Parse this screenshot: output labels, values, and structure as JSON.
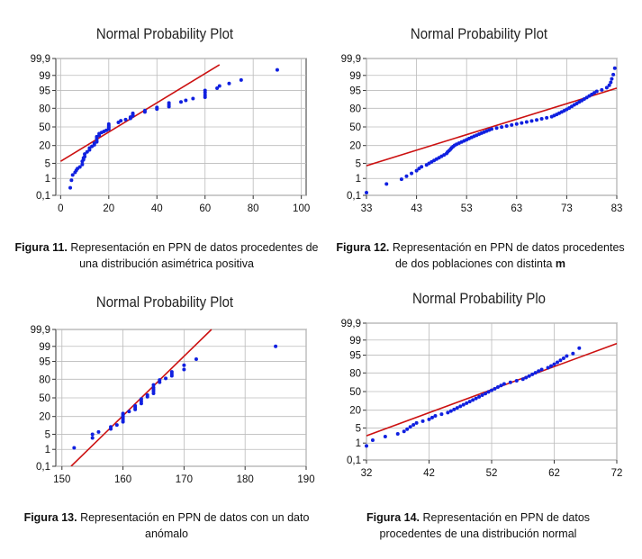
{
  "chart_data": [
    {
      "type": "scatter",
      "title": "Normal Probability Plot",
      "caption_label": "Figura 11.",
      "caption_text": " Representación en PPN de datos procedentes de una distribución asimétrica positiva",
      "x_ticks": [
        0,
        20,
        40,
        60,
        80,
        100
      ],
      "xlim": [
        -2,
        102
      ],
      "y_ticks": [
        "0,1",
        "1",
        "5",
        "20",
        "50",
        "80",
        "95",
        "99",
        "99,9"
      ],
      "y_scale": "normal-probability",
      "grid": true,
      "line": {
        "x": [
          0,
          66
        ],
        "y": [
          6,
          99.75
        ],
        "color": "#cc1111"
      },
      "series": [
        {
          "color": "#1020e0",
          "points": [
            [
              4,
              0.3
            ],
            [
              4.5,
              0.8
            ],
            [
              5,
              1.5
            ],
            [
              6,
              2
            ],
            [
              6.5,
              2.5
            ],
            [
              7,
              3
            ],
            [
              8,
              3.5
            ],
            [
              9,
              4.5
            ],
            [
              9,
              6
            ],
            [
              9.5,
              7
            ],
            [
              9.5,
              8
            ],
            [
              10,
              9
            ],
            [
              10,
              11
            ],
            [
              11,
              13
            ],
            [
              12,
              15
            ],
            [
              12,
              17
            ],
            [
              13,
              19
            ],
            [
              14,
              21
            ],
            [
              14,
              23
            ],
            [
              15,
              25
            ],
            [
              15,
              27
            ],
            [
              15,
              30
            ],
            [
              15,
              33
            ],
            [
              16,
              35
            ],
            [
              16,
              38
            ],
            [
              17,
              40
            ],
            [
              18,
              42
            ],
            [
              19,
              44
            ],
            [
              20,
              46
            ],
            [
              20,
              49
            ],
            [
              20,
              52
            ],
            [
              20,
              55
            ],
            [
              24,
              58
            ],
            [
              25,
              61
            ],
            [
              27,
              63
            ],
            [
              29,
              65
            ],
            [
              29,
              67
            ],
            [
              30,
              69
            ],
            [
              30,
              71
            ],
            [
              30,
              73
            ],
            [
              35,
              75
            ],
            [
              35,
              77
            ],
            [
              40,
              79
            ],
            [
              40,
              81
            ],
            [
              45,
              82
            ],
            [
              45,
              84
            ],
            [
              45,
              86
            ],
            [
              50,
              87
            ],
            [
              52,
              88.5
            ],
            [
              55,
              90
            ],
            [
              60,
              91
            ],
            [
              60,
              92.5
            ],
            [
              60,
              94
            ],
            [
              60,
              95
            ],
            [
              65,
              96
            ],
            [
              66,
              96.8
            ],
            [
              70,
              97.5
            ],
            [
              75,
              98.3
            ],
            [
              90,
              99.5
            ]
          ]
        }
      ]
    },
    {
      "type": "scatter",
      "title": "Normal Probability Plot",
      "caption_label": "Figura 12.",
      "caption_text": " Representación en PPN de datos procedentes de dos poblaciones con distinta ",
      "caption_bold_end": "m",
      "x_ticks": [
        33,
        43,
        53,
        63,
        73,
        83
      ],
      "xlim": [
        33,
        83
      ],
      "y_ticks": [
        "0,1",
        "1",
        "5",
        "20",
        "50",
        "80",
        "95",
        "99",
        "99,9"
      ],
      "y_scale": "normal-probability",
      "grid": true,
      "line": {
        "x": [
          33,
          83
        ],
        "y": [
          4,
          96
        ],
        "color": "#cc1111"
      },
      "series": [
        {
          "color": "#1020e0",
          "points": [
            [
              33,
              0.15
            ],
            [
              37,
              0.5
            ],
            [
              40,
              0.9
            ],
            [
              41,
              1.3
            ],
            [
              42,
              1.8
            ],
            [
              43,
              2.4
            ],
            [
              43.5,
              3
            ],
            [
              44,
              3.6
            ],
            [
              45,
              4.3
            ],
            [
              45.5,
              5
            ],
            [
              46,
              5.7
            ],
            [
              46.5,
              6.5
            ],
            [
              47,
              7.3
            ],
            [
              47.5,
              8.2
            ],
            [
              48,
              9.2
            ],
            [
              48.5,
              10.3
            ],
            [
              49,
              11.5
            ],
            [
              49.2,
              12.8
            ],
            [
              49.5,
              14.2
            ],
            [
              49.8,
              15.7
            ],
            [
              50,
              17.2
            ],
            [
              50.3,
              18.7
            ],
            [
              50.6,
              20.2
            ],
            [
              51,
              21.7
            ],
            [
              51.5,
              23.2
            ],
            [
              52,
              24.8
            ],
            [
              52.5,
              26.5
            ],
            [
              53,
              28.2
            ],
            [
              53.5,
              30
            ],
            [
              54,
              31.8
            ],
            [
              54.5,
              33.6
            ],
            [
              55,
              35.4
            ],
            [
              55.5,
              37.2
            ],
            [
              56,
              39
            ],
            [
              56.5,
              40.8
            ],
            [
              57,
              42.6
            ],
            [
              57.5,
              44.4
            ],
            [
              58,
              46.2
            ],
            [
              59,
              48
            ],
            [
              60,
              49.8
            ],
            [
              61,
              51.6
            ],
            [
              62,
              53.4
            ],
            [
              63,
              55.2
            ],
            [
              64,
              57
            ],
            [
              65,
              58.8
            ],
            [
              66,
              60.6
            ],
            [
              67,
              62.4
            ],
            [
              68,
              64.2
            ],
            [
              69,
              66
            ],
            [
              70,
              67.8
            ],
            [
              70.5,
              69.6
            ],
            [
              71,
              71.4
            ],
            [
              71.5,
              73.2
            ],
            [
              72,
              75
            ],
            [
              72.5,
              76.8
            ],
            [
              73,
              78.6
            ],
            [
              73.5,
              80.4
            ],
            [
              74,
              82.2
            ],
            [
              74.5,
              84
            ],
            [
              75,
              85.5
            ],
            [
              75.5,
              87
            ],
            [
              76,
              88.3
            ],
            [
              76.5,
              89.6
            ],
            [
              77,
              90.8
            ],
            [
              77.5,
              91.9
            ],
            [
              78,
              92.9
            ],
            [
              78.5,
              93.8
            ],
            [
              79,
              94.6
            ],
            [
              80,
              95.3
            ],
            [
              81,
              96.2
            ],
            [
              81.5,
              97
            ],
            [
              81.8,
              97.8
            ],
            [
              82,
              98.5
            ],
            [
              82.3,
              99.1
            ],
            [
              82.6,
              99.6
            ]
          ]
        }
      ]
    },
    {
      "type": "scatter",
      "title": "Normal Probability Plot",
      "caption_label": "Figura 13.",
      "caption_text": " Representación en PPN de datos con un dato anómalo",
      "x_ticks": [
        150,
        160,
        170,
        180,
        190
      ],
      "xlim": [
        149,
        190
      ],
      "y_ticks": [
        "0,1",
        "1",
        "5",
        "20",
        "50",
        "80",
        "95",
        "99",
        "99,9"
      ],
      "y_scale": "normal-probability",
      "grid": true,
      "line": {
        "x": [
          151.5,
          174.5
        ],
        "y": [
          0.1,
          99.9
        ],
        "color": "#cc1111"
      },
      "series": [
        {
          "color": "#1020e0",
          "points": [
            [
              152,
              1.2
            ],
            [
              155,
              3.5
            ],
            [
              155,
              5
            ],
            [
              156,
              6.2
            ],
            [
              158,
              8
            ],
            [
              158,
              9.5
            ],
            [
              159,
              11
            ],
            [
              160,
              14
            ],
            [
              160,
              16
            ],
            [
              160,
              18
            ],
            [
              160,
              20
            ],
            [
              160,
              22
            ],
            [
              160,
              24
            ],
            [
              161,
              27
            ],
            [
              162,
              30
            ],
            [
              162,
              33
            ],
            [
              162,
              36
            ],
            [
              163,
              40
            ],
            [
              163,
              44
            ],
            [
              163,
              48
            ],
            [
              164,
              52
            ],
            [
              164,
              55
            ],
            [
              165,
              58
            ],
            [
              165,
              62
            ],
            [
              165,
              65
            ],
            [
              165,
              68
            ],
            [
              165,
              72
            ],
            [
              166,
              76
            ],
            [
              166,
              79
            ],
            [
              167,
              81
            ],
            [
              168,
              84
            ],
            [
              168,
              86
            ],
            [
              168,
              88
            ],
            [
              170,
              90
            ],
            [
              170,
              93
            ],
            [
              172,
              96
            ],
            [
              185,
              99
            ]
          ]
        }
      ]
    },
    {
      "type": "scatter",
      "title": "Normal Probability Plo",
      "caption_label": "Figura 14.",
      "caption_text": " Representación en PPN de datos procedentes de una distribución normal",
      "x_ticks": [
        32,
        42,
        52,
        62,
        72
      ],
      "xlim": [
        32,
        72
      ],
      "y_ticks": [
        "0,1",
        "1",
        "5",
        "20",
        "50",
        "80",
        "95",
        "99",
        "99,9"
      ],
      "y_scale": "normal-probability",
      "grid": true,
      "line": {
        "x": [
          32,
          72
        ],
        "y": [
          2.3,
          98.5
        ],
        "color": "#cc1111"
      },
      "series": [
        {
          "color": "#1020e0",
          "points": [
            [
              32,
              0.7
            ],
            [
              33,
              1.4
            ],
            [
              35,
              2.1
            ],
            [
              37,
              2.8
            ],
            [
              38,
              3.6
            ],
            [
              38.5,
              4.5
            ],
            [
              39,
              5.5
            ],
            [
              39.5,
              6.6
            ],
            [
              40,
              7.8
            ],
            [
              41,
              9.1
            ],
            [
              42,
              10.5
            ],
            [
              42.5,
              12
            ],
            [
              43,
              13.6
            ],
            [
              44,
              15.3
            ],
            [
              45,
              17.1
            ],
            [
              45.5,
              19
            ],
            [
              46,
              21
            ],
            [
              46.5,
              23.1
            ],
            [
              47,
              25.3
            ],
            [
              47.5,
              27.6
            ],
            [
              48,
              30
            ],
            [
              48.5,
              32.5
            ],
            [
              49,
              35.1
            ],
            [
              49.5,
              37.8
            ],
            [
              50,
              40.6
            ],
            [
              50.5,
              43.5
            ],
            [
              51,
              46.4
            ],
            [
              51.5,
              49.3
            ],
            [
              52,
              52.2
            ],
            [
              52.5,
              55.1
            ],
            [
              53,
              58
            ],
            [
              53.5,
              60.8
            ],
            [
              54,
              63.5
            ],
            [
              55,
              66.1
            ],
            [
              56,
              68.7
            ],
            [
              57,
              71.2
            ],
            [
              57.5,
              73.6
            ],
            [
              58,
              75.9
            ],
            [
              58.5,
              78.1
            ],
            [
              59,
              80.2
            ],
            [
              59.5,
              82.2
            ],
            [
              60,
              84.1
            ],
            [
              61,
              85.9
            ],
            [
              61.5,
              87.6
            ],
            [
              62,
              89.2
            ],
            [
              62.5,
              90.7
            ],
            [
              63,
              92.1
            ],
            [
              63.5,
              93.4
            ],
            [
              64,
              94.6
            ],
            [
              65,
              95.7
            ],
            [
              66,
              97.5
            ]
          ]
        }
      ]
    }
  ]
}
